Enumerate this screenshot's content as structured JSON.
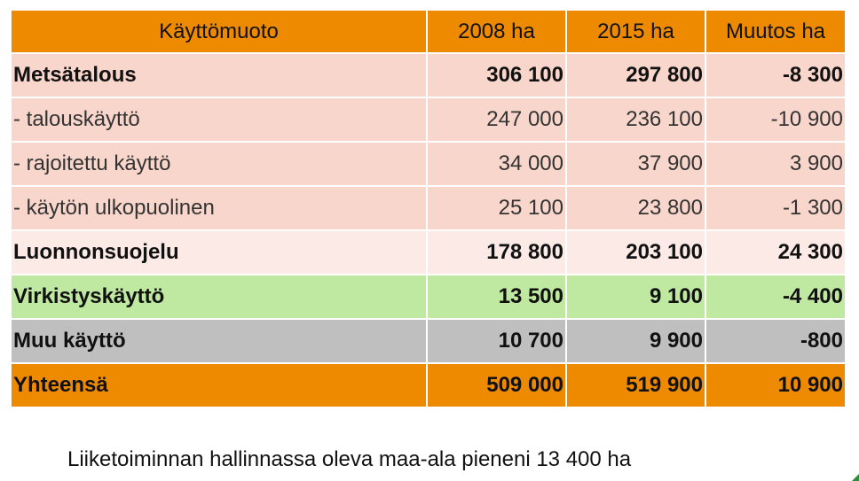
{
  "table": {
    "headers": [
      "Käyttömuoto",
      "2008 ha",
      "2015 ha",
      "Muutos ha"
    ],
    "rows": [
      {
        "label": "Metsätalous",
        "v2008": "306 100",
        "v2015": "297 800",
        "change": "-8 300"
      },
      {
        "label": "-  talouskäyttö",
        "v2008": "247 000",
        "v2015": "236 100",
        "change": "-10 900"
      },
      {
        "label": "-  rajoitettu käyttö",
        "v2008": "34 000",
        "v2015": "37 900",
        "change": "3 900"
      },
      {
        "label": "-  käytön ulkopuolinen",
        "v2008": "25 100",
        "v2015": "23 800",
        "change": "-1 300"
      },
      {
        "label": "Luonnonsuojelu",
        "v2008": "178 800",
        "v2015": "203 100",
        "change": "24 300"
      },
      {
        "label": "Virkistyskäyttö",
        "v2008": "13 500",
        "v2015": "9 100",
        "change": "-4 400"
      },
      {
        "label": "Muu käyttö",
        "v2008": "10 700",
        "v2015": "9 900",
        "change": "-800"
      },
      {
        "label": "Yhteensä",
        "v2008": "509 000",
        "v2015": "519 900",
        "change": "10 900"
      }
    ]
  },
  "caption": "Liiketoiminnan hallinnassa oleva maa-ala pieneni 13 400 ha",
  "colors": {
    "header": "#ee8a00",
    "forestry": "#f9d6cb",
    "protection": "#fbeae5",
    "recreation": "#bfe8a0",
    "other": "#bfbfbf",
    "total": "#ee8a00"
  }
}
